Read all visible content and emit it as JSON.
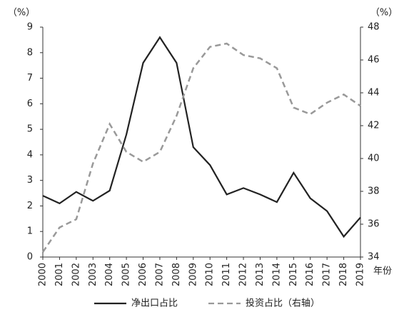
{
  "chart_data": {
    "type": "line",
    "y_unit": "（%）",
    "y2_unit": "（%）",
    "x_label": "年份",
    "categories": [
      "2000",
      "2001",
      "2002",
      "2003",
      "2004",
      "2005",
      "2006",
      "2007",
      "2008",
      "2009",
      "2010",
      "2011",
      "2012",
      "2013",
      "2014",
      "2015",
      "2016",
      "2017",
      "2018",
      "2019"
    ],
    "series": [
      {
        "name": "净出口占比",
        "color": "#222222",
        "dash": false,
        "values": [
          2.4,
          2.1,
          2.55,
          2.2,
          2.6,
          4.8,
          7.6,
          8.6,
          7.6,
          4.3,
          3.6,
          2.45,
          2.7,
          2.45,
          2.15,
          3.3,
          2.3,
          1.8,
          0.8,
          1.55
        ]
      },
      {
        "name": "投资占比（右轴）",
        "color": "#999999",
        "dash": true,
        "axis": "y2",
        "values": [
          34.3,
          35.8,
          36.3,
          39.7,
          42.1,
          40.4,
          39.8,
          40.4,
          42.6,
          45.5,
          46.8,
          47.0,
          46.3,
          46.1,
          45.5,
          43.1,
          42.7,
          43.4,
          43.9,
          43.2
        ]
      }
    ],
    "ylim": [
      0,
      9
    ],
    "yticks": [
      0,
      1,
      2,
      3,
      4,
      5,
      6,
      7,
      8,
      9
    ],
    "y2lim": [
      34,
      48
    ],
    "y2ticks": [
      34,
      36,
      38,
      40,
      42,
      44,
      46,
      48
    ]
  }
}
